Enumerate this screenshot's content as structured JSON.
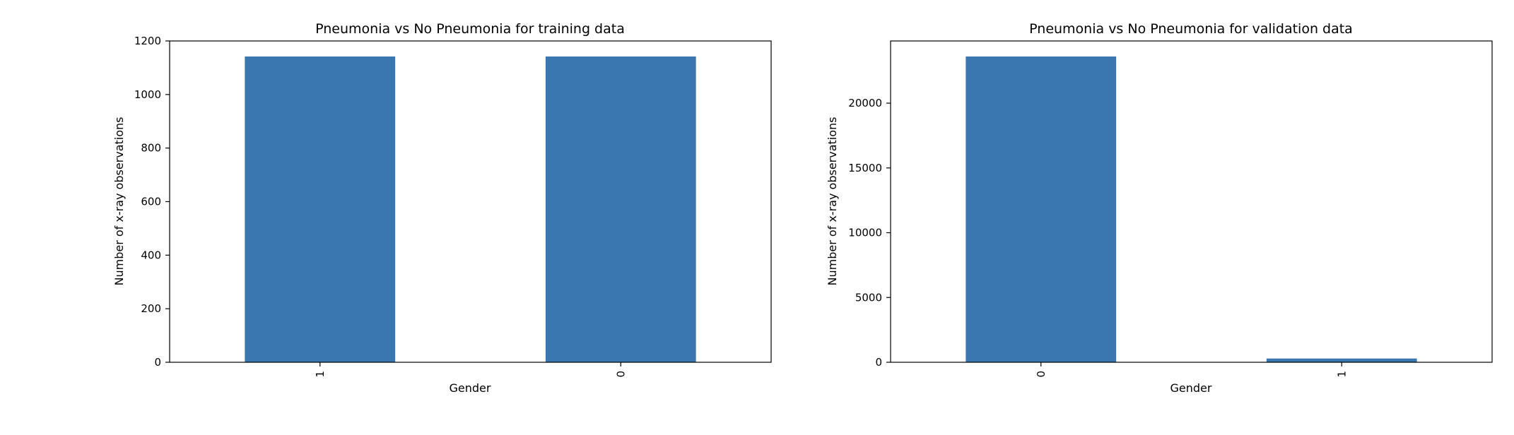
{
  "chart_data": [
    {
      "type": "bar",
      "title": "Pneumonia vs No Pneumonia for training data",
      "xlabel": "Gender",
      "ylabel": "Number of x-ray observations",
      "categories": [
        "1",
        "0"
      ],
      "values": [
        1142,
        1142
      ],
      "ylim": [
        0,
        1200
      ],
      "yticks": [
        "0",
        "200",
        "400",
        "600",
        "800",
        "1000",
        "1200"
      ],
      "color": "#3a76af",
      "grid": false,
      "legend": "none"
    },
    {
      "type": "bar",
      "title": "Pneumonia vs No Pneumonia for validation data",
      "xlabel": "Gender",
      "ylabel": "Number of x-ray observations",
      "categories": [
        "0",
        "1"
      ],
      "values": [
        23600,
        290
      ],
      "ylim": [
        0,
        24800
      ],
      "yticks": [
        "0",
        "5000",
        "10000",
        "15000",
        "20000"
      ],
      "color": "#3a76af",
      "grid": false,
      "legend": "none"
    }
  ]
}
